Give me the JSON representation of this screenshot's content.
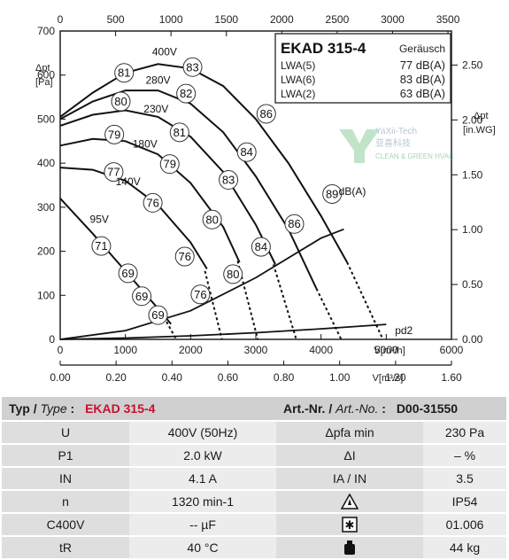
{
  "chart_data": {
    "type": "line",
    "title": "EKAD 315-4",
    "noise_header": "Geräusch",
    "noise_rows": [
      {
        "label": "LWA(5)",
        "value": "77 dB(A)"
      },
      {
        "label": "LWA(6)",
        "value": "83 dB(A)"
      },
      {
        "label": "LWA(2)",
        "value": "63 dB(A)"
      }
    ],
    "left_axis": {
      "label": "Δpt",
      "unit": "[Pa]",
      "ticks": [
        0,
        100,
        200,
        300,
        400,
        500,
        600,
        700
      ],
      "ylim": [
        0,
        700
      ]
    },
    "right_axis": {
      "label": "Δpt",
      "unit": "[in.WG]",
      "ticks": [
        "0.00",
        "0.50",
        "1.00",
        "1.50",
        "2.00",
        "2.50"
      ]
    },
    "bottom_axis": {
      "label": "V[m³/h]",
      "ticks": [
        0,
        1000,
        2000,
        3000,
        4000,
        5000,
        6000
      ],
      "xlim": [
        0,
        6000
      ]
    },
    "top_axis": {
      "ticks": [
        0,
        500,
        1000,
        1500,
        2000,
        2500,
        3000,
        3500
      ]
    },
    "lower_axis": {
      "label": "V[m³/s]",
      "ticks": [
        "0.00",
        "0.20",
        "0.40",
        "0.60",
        "0.80",
        "1.00",
        "1.20",
        "1.60"
      ]
    },
    "series": [
      {
        "name": "400V",
        "x": [
          0,
          500,
          1000,
          1500,
          2000,
          2500,
          3000,
          3500,
          4000,
          4400
        ],
        "y": [
          505,
          560,
          605,
          625,
          615,
          575,
          500,
          400,
          280,
          175
        ]
      },
      {
        "name": "280V",
        "x": [
          0,
          500,
          1000,
          1500,
          2000,
          2500,
          3000,
          3500,
          3930
        ],
        "y": [
          500,
          540,
          565,
          565,
          535,
          470,
          370,
          250,
          115
        ]
      },
      {
        "name": "230V",
        "x": [
          0,
          500,
          1000,
          1500,
          2000,
          2500,
          3000,
          3300
        ],
        "y": [
          485,
          510,
          520,
          505,
          460,
          380,
          260,
          170
        ]
      },
      {
        "name": "180V",
        "x": [
          0,
          500,
          1000,
          1500,
          2000,
          2500,
          2750
        ],
        "y": [
          440,
          455,
          450,
          420,
          355,
          255,
          175
        ]
      },
      {
        "name": "140V",
        "x": [
          0,
          500,
          1000,
          1500,
          2000,
          2250
        ],
        "y": [
          390,
          385,
          360,
          305,
          220,
          160
        ]
      },
      {
        "name": "95V",
        "x": [
          0,
          500,
          1000,
          1500,
          1700
        ],
        "y": [
          320,
          240,
          155,
          70,
          35
        ]
      }
    ],
    "system_curves": [
      {
        "x": [
          0,
          1000,
          2000,
          3000,
          4000,
          4350
        ],
        "y": [
          0,
          20,
          65,
          140,
          230,
          250
        ]
      },
      {
        "name": "pd2",
        "x": [
          0,
          1000,
          2000,
          3000,
          4000,
          5000
        ],
        "y": [
          0,
          3,
          8,
          15,
          24,
          34
        ]
      }
    ],
    "extensions": [
      {
        "x": [
          1630,
          1780
        ],
        "y": [
          40,
          0
        ]
      },
      {
        "x": [
          2220,
          2480
        ],
        "y": [
          155,
          0
        ]
      },
      {
        "x": [
          2720,
          3030
        ],
        "y": [
          178,
          0
        ]
      },
      {
        "x": [
          3270,
          3620
        ],
        "y": [
          170,
          0
        ]
      },
      {
        "x": [
          3930,
          4310
        ],
        "y": [
          115,
          0
        ]
      },
      {
        "x": [
          4400,
          4950
        ],
        "y": [
          175,
          0
        ]
      }
    ],
    "curve_labels": [
      {
        "text": "400V",
        "x": 1600,
        "y": 645
      },
      {
        "text": "280V",
        "x": 1500,
        "y": 580
      },
      {
        "text": "230V",
        "x": 1470,
        "y": 515
      },
      {
        "text": "180V",
        "x": 1300,
        "y": 435
      },
      {
        "text": "140V",
        "x": 1040,
        "y": 350
      },
      {
        "text": "95V",
        "x": 600,
        "y": 265
      },
      {
        "text": "dB(A)",
        "x": 4480,
        "y": 328
      },
      {
        "text": "pd2",
        "x": 5270,
        "y": 12
      }
    ],
    "noise_markers": [
      {
        "v": "81",
        "x": 980,
        "y": 605
      },
      {
        "v": "83",
        "x": 2030,
        "y": 618
      },
      {
        "v": "80",
        "x": 930,
        "y": 540
      },
      {
        "v": "82",
        "x": 1930,
        "y": 558
      },
      {
        "v": "86",
        "x": 3160,
        "y": 512
      },
      {
        "v": "79",
        "x": 830,
        "y": 465
      },
      {
        "v": "81",
        "x": 1830,
        "y": 470
      },
      {
        "v": "77",
        "x": 820,
        "y": 380
      },
      {
        "v": "79",
        "x": 1680,
        "y": 398
      },
      {
        "v": "84",
        "x": 2860,
        "y": 425
      },
      {
        "v": "89",
        "x": 4170,
        "y": 330
      },
      {
        "v": "76",
        "x": 1420,
        "y": 310
      },
      {
        "v": "83",
        "x": 2580,
        "y": 362
      },
      {
        "v": "80",
        "x": 2330,
        "y": 272
      },
      {
        "v": "86",
        "x": 3590,
        "y": 262
      },
      {
        "v": "71",
        "x": 630,
        "y": 212
      },
      {
        "v": "76",
        "x": 1910,
        "y": 188
      },
      {
        "v": "84",
        "x": 3080,
        "y": 210
      },
      {
        "v": "69",
        "x": 1040,
        "y": 150
      },
      {
        "v": "80",
        "x": 2650,
        "y": 148
      },
      {
        "v": "69",
        "x": 1250,
        "y": 98
      },
      {
        "v": "76",
        "x": 2150,
        "y": 102
      },
      {
        "v": "69",
        "x": 1500,
        "y": 55
      }
    ],
    "grid": false,
    "legend": "top-right"
  },
  "watermark": {
    "title": "YaXii-Tech",
    "subtitle_cn": "亚喜科技",
    "subtitle_en": "CLEAN & GREEN HVAC"
  },
  "table": {
    "type_label": "Typ / ",
    "type_label_italic": "Type",
    "type_sep": " :",
    "type_value": "EKAD 315-4",
    "art_label": "Art.-Nr. / ",
    "art_label_italic": "Art.-No.",
    "art_sep": " :",
    "art_value": "D00-31550",
    "rows": [
      {
        "p1": "U",
        "v1": "400V (50Hz)",
        "p2": "Δpfa min",
        "v2": "230 Pa"
      },
      {
        "p1": "P1",
        "v1": "2.0 kW",
        "p2": "ΔI",
        "v2": "– %"
      },
      {
        "p1": "IN",
        "v1": "4.1 A",
        "p2": "IA / IN",
        "v2": "3.5"
      },
      {
        "p1": "n",
        "v1": "1320 min-1",
        "p2": "warning-triangle-icon",
        "v2": "IP54"
      },
      {
        "p1": "C400V",
        "v1": "-- µF",
        "p2": "star-box-icon",
        "v2": "01.006"
      },
      {
        "p1": "tR",
        "v1": "40 °C",
        "p2": "weight-icon",
        "v2": "44 kg"
      }
    ]
  }
}
